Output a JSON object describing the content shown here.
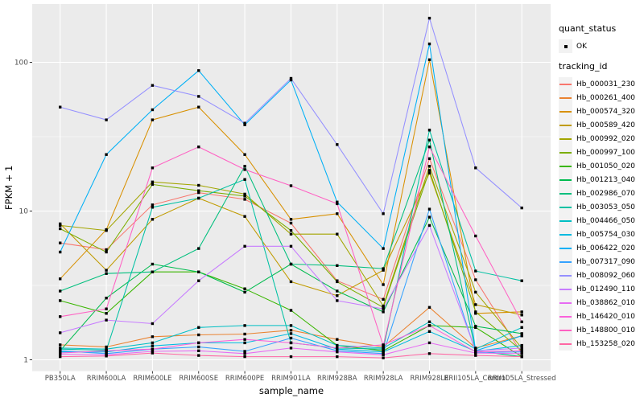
{
  "chart_data": {
    "type": "line",
    "title": "",
    "xlabel": "sample_name",
    "ylabel": "FPKM + 1",
    "y_scale": "log10",
    "y_ticks": [
      1,
      10,
      100
    ],
    "y_minor_ticks": [
      3.162,
      31.62
    ],
    "ylim": [
      0.7,
      250
    ],
    "grid": true,
    "panel_bg": "#EBEBEB",
    "grid_color": "#FFFFFF",
    "point_color": "#000000",
    "point_shape": "square",
    "tick_label_color": "#4D4D4D",
    "categories": [
      "PB350LA",
      "RRIM600LA",
      "RRIM600LE",
      "RRIM600SE",
      "RRIM600PE",
      "RRIM901LA",
      "RRIM928BA",
      "RRIM928LA",
      "RRIM928LE",
      "RRII105LA_Control",
      "RRII105LA_Stressed"
    ],
    "legend": {
      "position": "right",
      "quant_title": "quant_status",
      "quant_label": "OK",
      "series_title": "tracking_id"
    },
    "series": [
      {
        "name": "Hb_000031_230",
        "color": "#F8766D",
        "values": [
          6.1,
          5.5,
          11,
          13.3,
          12,
          8.3,
          3.4,
          2.55,
          22.5,
          3.45,
          1.1
        ]
      },
      {
        "name": "Hb_000261_400",
        "color": "#EA8331",
        "values": [
          1.26,
          1.22,
          1.43,
          1.47,
          1.49,
          1.58,
          1.37,
          1.22,
          2.25,
          1.2,
          1.45
        ]
      },
      {
        "name": "Hb_000574_320",
        "color": "#D89000",
        "values": [
          3.5,
          7.5,
          41,
          50,
          24,
          8.8,
          9.6,
          3.2,
          104,
          2.05,
          2.1
        ]
      },
      {
        "name": "Hb_000589_420",
        "color": "#C09B00",
        "values": [
          8.2,
          4.0,
          8.8,
          12.2,
          9.2,
          3.35,
          2.7,
          4.0,
          18,
          2.35,
          2.0
        ]
      },
      {
        "name": "Hb_000992_020",
        "color": "#A3A500",
        "values": [
          8.0,
          7.4,
          15.7,
          14.9,
          13,
          7.0,
          7.0,
          2.3,
          20,
          2.85,
          1.2
        ]
      },
      {
        "name": "Hb_000997_100",
        "color": "#7CAE00",
        "values": [
          7.6,
          5.3,
          15.1,
          13.7,
          12.6,
          7.4,
          3.35,
          2.25,
          18.8,
          2.1,
          1.15
        ]
      },
      {
        "name": "Hb_001050_020",
        "color": "#39B600",
        "values": [
          2.5,
          2.05,
          3.9,
          3.9,
          3.0,
          2.15,
          1.25,
          1.15,
          1.7,
          1.65,
          1.05
        ]
      },
      {
        "name": "Hb_001213_040",
        "color": "#00BB4E",
        "values": [
          1.15,
          2.6,
          4.4,
          3.9,
          2.85,
          4.4,
          2.9,
          2.1,
          9.1,
          1.68,
          1.5
        ]
      },
      {
        "name": "Hb_002986_070",
        "color": "#00BF7D",
        "values": [
          2.9,
          3.8,
          3.9,
          5.6,
          20,
          4.4,
          4.3,
          4.1,
          30,
          1.15,
          1.05
        ]
      },
      {
        "name": "Hb_003053_050",
        "color": "#00C1A3",
        "values": [
          1.18,
          1.16,
          10.6,
          12.2,
          16.3,
          1.3,
          1.2,
          1.18,
          35,
          3.95,
          3.4
        ]
      },
      {
        "name": "Hb_004466_050",
        "color": "#00BFC4",
        "values": [
          1.2,
          1.18,
          1.3,
          1.65,
          1.7,
          1.7,
          1.25,
          1.2,
          1.8,
          1.18,
          1.65
        ]
      },
      {
        "name": "Hb_005754_030",
        "color": "#00BAE0",
        "values": [
          1.13,
          1.13,
          1.24,
          1.3,
          1.3,
          1.5,
          1.18,
          1.13,
          1.55,
          1.14,
          1.25
        ]
      },
      {
        "name": "Hb_006422_020",
        "color": "#00B0F6",
        "values": [
          5.3,
          24,
          48,
          88,
          38,
          76,
          11.5,
          5.6,
          133,
          1.15,
          1.45
        ]
      },
      {
        "name": "Hb_007317_090",
        "color": "#35A2FF",
        "values": [
          1.15,
          1.1,
          1.18,
          1.22,
          1.14,
          1.4,
          1.15,
          1.1,
          10.3,
          1.12,
          1.13
        ]
      },
      {
        "name": "Hb_008092_060",
        "color": "#9590FF",
        "values": [
          50,
          41,
          70,
          59,
          39,
          78,
          28,
          9.6,
          198,
          19.5,
          10.5
        ]
      },
      {
        "name": "Hb_012490_110",
        "color": "#C77CFF",
        "values": [
          1.52,
          1.85,
          1.75,
          3.4,
          5.8,
          5.8,
          2.5,
          2.2,
          8.0,
          1.15,
          1.2
        ]
      },
      {
        "name": "Hb_038862_010",
        "color": "#E76BF3",
        "values": [
          1.09,
          1.08,
          1.14,
          1.15,
          1.1,
          1.2,
          1.13,
          1.08,
          1.3,
          1.11,
          1.1
        ]
      },
      {
        "name": "Hb_146420_010",
        "color": "#FA62DB",
        "values": [
          1.11,
          1.15,
          1.18,
          1.3,
          1.37,
          1.3,
          1.2,
          1.26,
          1.7,
          1.13,
          1.15
        ]
      },
      {
        "name": "Hb_148800_010",
        "color": "#FF61C3",
        "values": [
          1.95,
          2.2,
          19.5,
          27,
          19,
          14.8,
          11.2,
          1.25,
          27,
          6.8,
          1.8
        ]
      },
      {
        "name": "Hb_153258_020",
        "color": "#FF67A4",
        "values": [
          1.05,
          1.06,
          1.11,
          1.07,
          1.05,
          1.05,
          1.05,
          1.03,
          1.1,
          1.07,
          1.05
        ]
      }
    ]
  }
}
